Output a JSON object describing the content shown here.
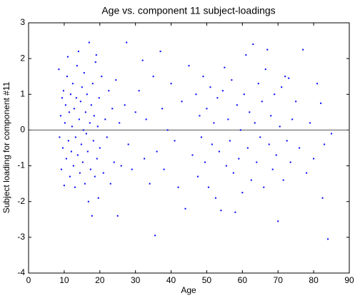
{
  "chart_data": {
    "type": "scatter",
    "title": "Age vs. component 11 subject-loadings",
    "xlabel": "Age",
    "ylabel": "Subject loading for component #11",
    "xlim": [
      0,
      90
    ],
    "ylim": [
      -4,
      3
    ],
    "xticks": [
      0,
      10,
      20,
      30,
      40,
      50,
      60,
      70,
      80,
      90
    ],
    "yticks": [
      -4,
      -3,
      -2,
      -1,
      0,
      1,
      2,
      3
    ],
    "reference_line": 0,
    "color": "#0000ff",
    "x": [
      8.5,
      8.7,
      9,
      9.2,
      9.4,
      9.6,
      9.8,
      10,
      10.2,
      10.4,
      10.6,
      10.8,
      11,
      11.2,
      11.4,
      11.6,
      11.8,
      12,
      12.2,
      12.4,
      12.6,
      12.8,
      13,
      13.2,
      13.4,
      13.6,
      13.8,
      14,
      14.2,
      14.4,
      14.6,
      14.8,
      15,
      15.2,
      15.4,
      15.6,
      15.8,
      16,
      16.2,
      16.4,
      16.6,
      16.8,
      17,
      17.2,
      17.4,
      17.6,
      17.8,
      18,
      18.2,
      18.4,
      18.6,
      18.8,
      19,
      19.2,
      19.4,
      19.6,
      19.8,
      20,
      20.5,
      21,
      21.5,
      22,
      22.5,
      23,
      23.5,
      24,
      24.5,
      25,
      25.5,
      26,
      27,
      27.5,
      28,
      29,
      30,
      31,
      32,
      32.5,
      33,
      34,
      35,
      35.5,
      36,
      37,
      37.5,
      38,
      39,
      40,
      41,
      42,
      43,
      44,
      45,
      46,
      47,
      47.5,
      48,
      48.5,
      49,
      49.5,
      50,
      50.5,
      51,
      51.5,
      52,
      52.5,
      53,
      53.5,
      54,
      54.5,
      55,
      55.5,
      56,
      56.5,
      57,
      57.5,
      58,
      58.5,
      59,
      59.5,
      60,
      60.5,
      61,
      61.5,
      62,
      62.5,
      63,
      63.5,
      64,
      64.5,
      65,
      65.5,
      66,
      66.5,
      67,
      67.5,
      68,
      68.5,
      69,
      69.5,
      70,
      70.5,
      71,
      71.5,
      72,
      72.5,
      73,
      73.5,
      74,
      75,
      76,
      77,
      78,
      79,
      80,
      81,
      82,
      82.5,
      83,
      84,
      85
    ],
    "y": [
      1.7,
      -0.2,
      0.4,
      -1.1,
      0.9,
      -0.5,
      1.1,
      -1.55,
      0.2,
      0.7,
      -0.8,
      1.5,
      2.05,
      -0.3,
      0.5,
      -1.3,
      1.0,
      -0.6,
      0.1,
      1.3,
      -1.0,
      0.6,
      -1.6,
      -0.2,
      0.9,
      1.8,
      -0.7,
      2.2,
      0.3,
      -1.2,
      0.8,
      -0.4,
      1.2,
      -0.9,
      0.0,
      1.6,
      -1.5,
      0.5,
      -0.1,
      1.0,
      -0.6,
      -2.0,
      2.45,
      0.2,
      -1.1,
      0.7,
      -2.4,
      1.3,
      -0.3,
      0.4,
      -1.3,
      1.9,
      2.1,
      -0.8,
      0.1,
      -1.9,
      0.9,
      -0.5,
      1.5,
      -1.2,
      0.3,
      -0.2,
      1.1,
      -1.5,
      0.6,
      -0.9,
      1.4,
      -2.4,
      0.2,
      -1.0,
      0.7,
      2.45,
      -0.4,
      -1.1,
      0.5,
      1.1,
      1.95,
      -0.8,
      0.3,
      -1.5,
      1.5,
      -2.95,
      -0.6,
      2.2,
      0.6,
      -1.1,
      0.0,
      1.3,
      -0.3,
      -1.6,
      0.8,
      -2.2,
      1.8,
      -0.7,
      1.0,
      -1.3,
      0.4,
      -0.2,
      1.5,
      -0.9,
      0.6,
      -1.6,
      1.2,
      -0.4,
      0.2,
      -1.9,
      0.9,
      -0.6,
      -2.25,
      1.1,
      1.75,
      -1.0,
      0.3,
      -0.3,
      1.4,
      -1.2,
      -2.3,
      0.7,
      -0.8,
      0.0,
      -1.75,
      1.0,
      2.1,
      -0.5,
      0.5,
      -1.4,
      2.4,
      0.2,
      -0.9,
      1.3,
      -0.2,
      0.8,
      -1.6,
      1.7,
      2.25,
      -0.4,
      0.4,
      -1.1,
      1.0,
      -0.7,
      -2.55,
      0.1,
      1.2,
      -1.4,
      1.5,
      -0.3,
      1.45,
      -0.9,
      0.3,
      0.8,
      -0.5,
      2.25,
      -1.2,
      0.2,
      -0.8,
      1.3,
      0.75,
      -1.9,
      -0.4,
      -3.05,
      -0.1
    ]
  }
}
